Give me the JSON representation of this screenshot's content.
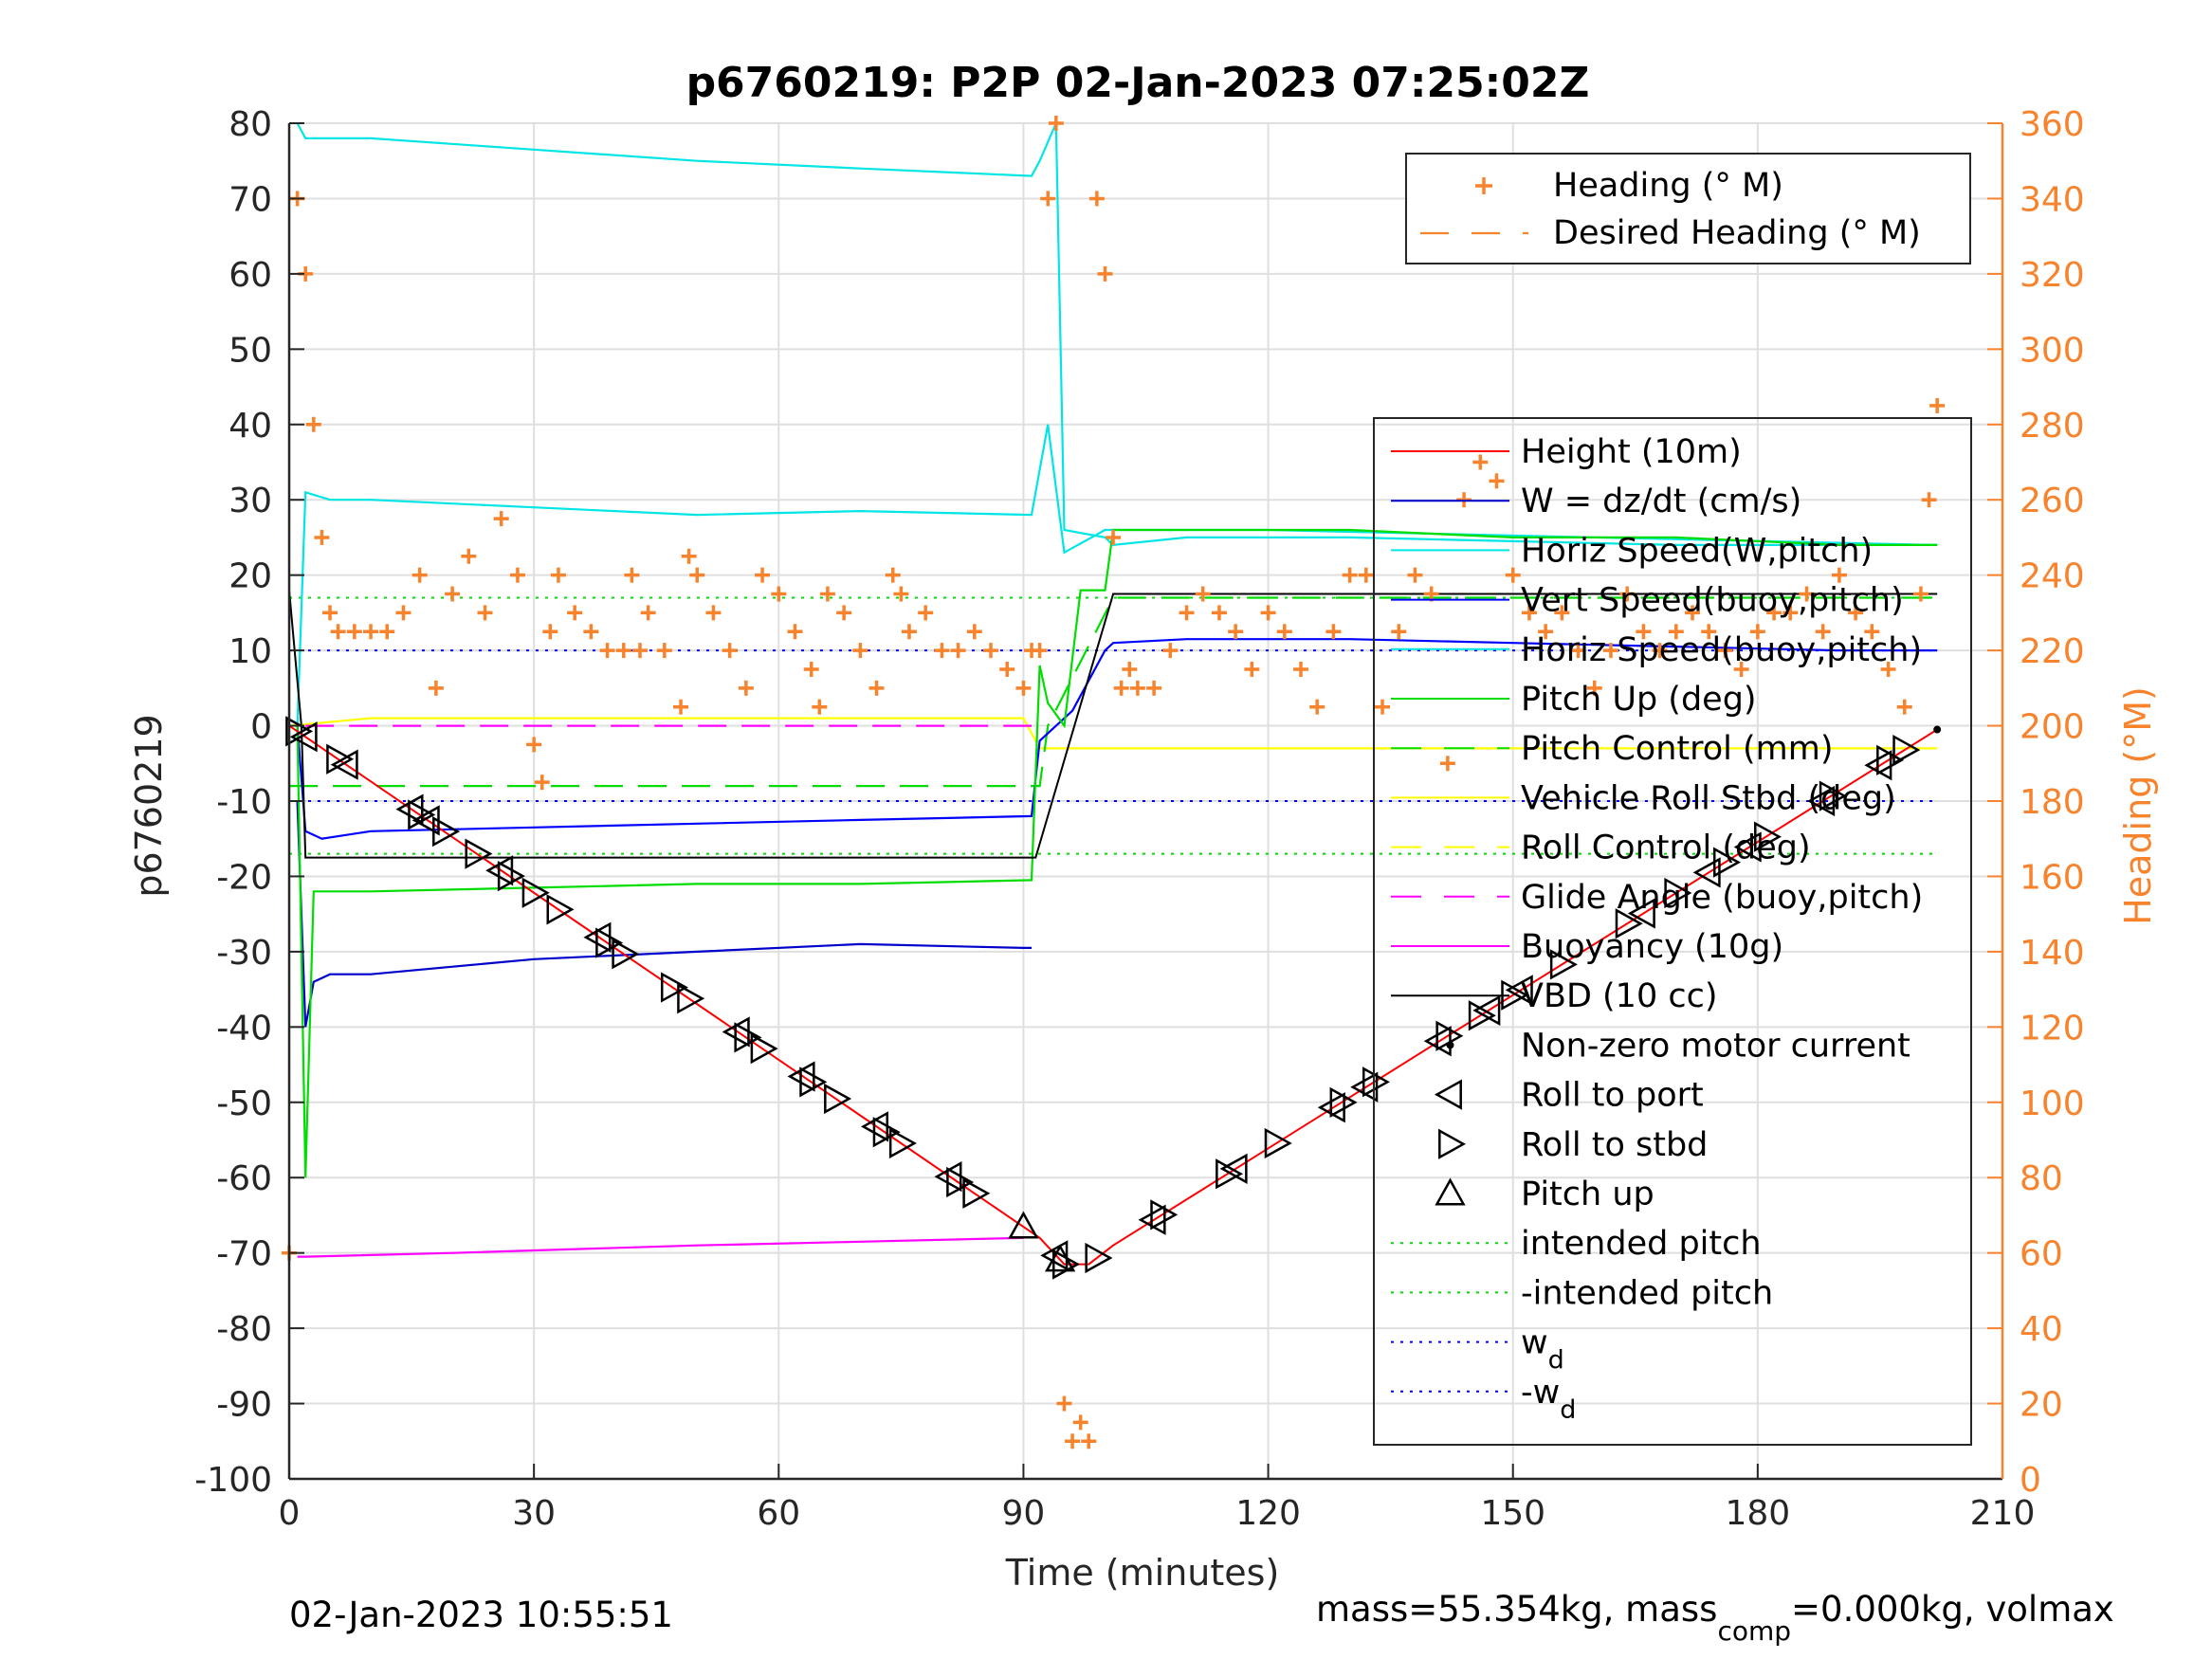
{
  "chart_data": {
    "type": "line",
    "title": "p6760219: P2P 02-Jan-2023 07:25:02Z",
    "xlabel": "Time (minutes)",
    "ylabel": "p6760219",
    "y2label": "Heading (°M)",
    "xlim": [
      0,
      210
    ],
    "ylim": [
      -100,
      80
    ],
    "y2lim": [
      0,
      360
    ],
    "x_ticks": [
      "0",
      "30",
      "60",
      "90",
      "120",
      "150",
      "180",
      "210"
    ],
    "y_ticks": [
      "80",
      "70",
      "60",
      "50",
      "40",
      "30",
      "20",
      "10",
      "0",
      "-10",
      "-20",
      "-30",
      "-40",
      "-50",
      "-60",
      "-70",
      "-80",
      "-90",
      "-100"
    ],
    "y2_ticks": [
      "360",
      "340",
      "320",
      "300",
      "280",
      "260",
      "240",
      "220",
      "200",
      "180",
      "160",
      "140",
      "120",
      "100",
      "80",
      "60",
      "40",
      "20",
      "0"
    ],
    "grid": true,
    "legend_top": [
      "Heading (° M)",
      "Desired Heading (° M)"
    ],
    "legend_main": [
      {
        "label": "Height (10m)",
        "style": "line",
        "color": "#ff0000"
      },
      {
        "label": "W = dz/dt (cm/s)",
        "style": "line",
        "color": "#0000cc"
      },
      {
        "label": "Horiz Speed(W,pitch)",
        "style": "line",
        "color": "#00e5e5"
      },
      {
        "label": "Vert Speed(buoy,pitch)",
        "style": "line",
        "color": "#0000ff"
      },
      {
        "label": "Horiz Speed(buoy,pitch)",
        "style": "line",
        "color": "#00e5e5"
      },
      {
        "label": "Pitch Up (deg)",
        "style": "line",
        "color": "#00dd00"
      },
      {
        "label": "Pitch Control (mm)",
        "style": "dash",
        "color": "#00dd00"
      },
      {
        "label": "Vehicle Roll Stbd (deg)",
        "style": "line",
        "color": "#ffff00"
      },
      {
        "label": "Roll Control (deg)",
        "style": "dash",
        "color": "#ffff00"
      },
      {
        "label": "Glide Angle (buoy,pitch)",
        "style": "dash",
        "color": "#ff00ff"
      },
      {
        "label": "Buoyancy (10g)",
        "style": "line",
        "color": "#ff00ff"
      },
      {
        "label": "VBD (10 cc)",
        "style": "line",
        "color": "#000000"
      },
      {
        "label": "Non-zero motor current",
        "style": "dot",
        "color": "#000000"
      },
      {
        "label": "Roll to port",
        "style": "tri-left",
        "color": "#000000"
      },
      {
        "label": "Roll to stbd",
        "style": "tri-right",
        "color": "#000000"
      },
      {
        "label": "Pitch up",
        "style": "tri-up",
        "color": "#000000"
      },
      {
        "label": "intended pitch",
        "style": "dotted",
        "color": "#00dd00"
      },
      {
        "label": "-intended pitch",
        "style": "dotted",
        "color": "#00dd00"
      },
      {
        "label": "w",
        "sub": "d",
        "style": "dotted",
        "color": "#0000ff"
      },
      {
        "label": "-w",
        "sub": "d",
        "style": "dotted",
        "color": "#0000ff"
      }
    ],
    "series": {
      "height": {
        "x": [
          0,
          92,
          95,
          98,
          101,
          202
        ],
        "y": [
          0,
          -68,
          -71.5,
          -71.5,
          -69,
          -0.5
        ]
      },
      "horiz_speed": {
        "x": [
          1,
          2,
          10,
          30,
          50,
          70,
          91,
          92,
          94,
          95,
          100,
          101,
          110,
          130,
          150,
          170,
          190,
          202
        ],
        "y": [
          80,
          78,
          78,
          76.5,
          75,
          74,
          73,
          75,
          80,
          26,
          25,
          24,
          25,
          25,
          24.5,
          24,
          24,
          24
        ]
      },
      "horiz_speed_buoy": {
        "x": [
          1,
          2,
          5,
          10,
          30,
          50,
          70,
          91,
          93,
          95,
          100,
          120,
          160,
          202
        ],
        "y": [
          0,
          31,
          30,
          30,
          29,
          28,
          28.5,
          28,
          40,
          23,
          26,
          26,
          25,
          24
        ]
      },
      "w": {
        "x": [
          1,
          2,
          3,
          5,
          10,
          30,
          50,
          70,
          90,
          91
        ],
        "y": [
          -10,
          -40,
          -34,
          -33,
          -33,
          -31,
          -30,
          -29,
          -29.5,
          -29.5
        ]
      },
      "vert_speed": {
        "x": [
          1,
          2,
          4,
          10,
          30,
          50,
          70,
          91,
          92,
          96,
          100,
          101,
          110,
          130,
          150,
          170,
          190,
          202
        ],
        "y": [
          0,
          -14,
          -15,
          -14,
          -13.5,
          -13,
          -12.5,
          -12,
          -2,
          2,
          10,
          11,
          11.5,
          11.5,
          11,
          10.5,
          10,
          10
        ]
      },
      "pitch_up": {
        "x": [
          1,
          2,
          3,
          10,
          30,
          50,
          70,
          91,
          92,
          93,
          95,
          97,
          100,
          101,
          110,
          130,
          150,
          170,
          190,
          202
        ],
        "y": [
          0,
          -60,
          -22,
          -22,
          -21.5,
          -21,
          -21,
          -20.5,
          8,
          3,
          0,
          18,
          18,
          26,
          26,
          26,
          25,
          25,
          24,
          24
        ]
      },
      "pitch_control": {
        "x": [
          0,
          92,
          93,
          101,
          110,
          140,
          202
        ],
        "y": [
          -8,
          -8,
          0,
          17,
          17,
          17,
          17
        ]
      },
      "roll": {
        "x": [
          0,
          10,
          30,
          50,
          70,
          90,
          92,
          100,
          110,
          130,
          150,
          170,
          190,
          202
        ],
        "y": [
          0,
          1,
          1,
          1,
          1,
          1,
          -3,
          -3,
          -3,
          -3,
          -3,
          -3,
          -3,
          -3
        ]
      },
      "buoyancy": {
        "x": [
          1,
          2,
          20,
          50,
          70,
          90
        ],
        "y": [
          -70.5,
          -70.5,
          -70,
          -69,
          -68.5,
          -68
        ]
      },
      "vbd": {
        "x": [
          0,
          1.5,
          2,
          91.5,
          101,
          202
        ],
        "y": [
          18,
          0,
          -17.5,
          -17.5,
          17.5,
          17.5
        ]
      },
      "glide_angle": {
        "x": [
          2,
          91
        ],
        "y": [
          0,
          0
        ]
      },
      "intended_pitch": [
        17,
        -17
      ],
      "wd": [
        10,
        -10
      ],
      "heading": {
        "x": [
          0,
          1,
          2,
          3,
          4,
          5,
          6,
          8,
          10,
          12,
          14,
          16,
          18,
          20,
          22,
          24,
          26,
          28,
          30,
          31,
          32,
          33,
          35,
          37,
          39,
          41,
          42,
          43,
          44,
          46,
          48,
          49,
          50,
          52,
          54,
          56,
          58,
          60,
          62,
          64,
          65,
          66,
          68,
          70,
          72,
          74,
          75,
          76,
          78,
          80,
          82,
          84,
          86,
          88,
          90,
          91,
          92,
          93,
          94,
          95,
          96,
          97,
          98,
          99,
          100,
          101,
          102,
          103,
          104,
          106,
          108,
          110,
          112,
          114,
          116,
          118,
          120,
          122,
          124,
          126,
          128,
          130,
          132,
          134,
          136,
          138,
          140,
          142,
          144,
          146,
          148,
          150,
          152,
          154,
          156,
          158,
          160,
          162,
          164,
          166,
          168,
          170,
          172,
          174,
          176,
          178,
          180,
          182,
          184,
          186,
          188,
          190,
          192,
          194,
          196,
          198,
          200,
          201,
          202
        ],
        "y": [
          60,
          340,
          320,
          280,
          250,
          230,
          225,
          225,
          225,
          225,
          230,
          240,
          210,
          235,
          245,
          230,
          255,
          240,
          195,
          185,
          225,
          240,
          230,
          225,
          220,
          220,
          240,
          220,
          230,
          220,
          205,
          245,
          240,
          230,
          220,
          210,
          240,
          235,
          225,
          215,
          205,
          235,
          230,
          220,
          210,
          240,
          235,
          225,
          230,
          220,
          220,
          225,
          220,
          215,
          210,
          220,
          220,
          340,
          360,
          20,
          10,
          15,
          10,
          340,
          320,
          250,
          210,
          215,
          210,
          210,
          220,
          230,
          235,
          230,
          225,
          215,
          230,
          225,
          215,
          205,
          225,
          240,
          240,
          205,
          225,
          240,
          235,
          190,
          260,
          270,
          265,
          240,
          230,
          225,
          230,
          220,
          210,
          220,
          235,
          225,
          220,
          225,
          230,
          225,
          220,
          215,
          225,
          230,
          230,
          235,
          225,
          240,
          230,
          225,
          215,
          205,
          235,
          260,
          285
        ]
      }
    }
  },
  "footer": {
    "timestamp": "02-Jan-2023 10:55:51",
    "mass_text_a": "mass=55.354kg, mass",
    "mass_sub": "comp",
    "mass_text_b": "=0.000kg, volmax"
  },
  "colors": {
    "axis": "#262626",
    "grid": "#dfdfdf",
    "heading": "#f7832d"
  }
}
